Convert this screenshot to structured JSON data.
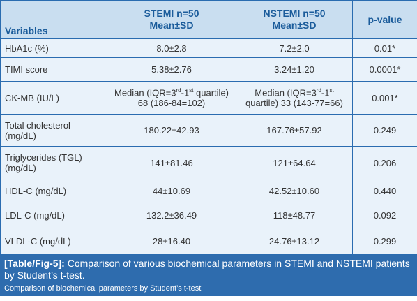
{
  "table": {
    "header": [
      "Variables",
      [
        "STEMI n=50",
        "Mean±SD"
      ],
      [
        "NSTEMI n=50",
        "Mean±SD"
      ],
      "p-value"
    ],
    "rows": [
      [
        "HbA1c (%)",
        "8.0±2.8",
        "7.2±2.0",
        "0.01*"
      ],
      [
        "TIMI score",
        "5.38±2.76",
        "3.24±1.20",
        "0.0001*"
      ],
      [
        "CK-MB (IU/L)",
        [
          "Median (IQR=3",
          "rd",
          "-1",
          "st",
          " quartile) 68 (186-84=102)"
        ],
        [
          "Median (IQR=3",
          "rd",
          "-1",
          "st",
          " quartile) 33 (143-77=66)"
        ],
        "0.001*"
      ],
      [
        "Total cholesterol (mg/dL)",
        "180.22±42.93",
        "167.76±57.92",
        "0.249"
      ],
      [
        "Triglycerides (TGL) (mg/dL)",
        "141±81.46",
        "121±64.64",
        "0.206"
      ],
      [
        "HDL-C (mg/dL)",
        "44±10.69",
        "42.52±10.60",
        "0.440"
      ],
      [
        "LDL-C (mg/dL)",
        "132.2±36.49",
        "118±48.77",
        "0.092"
      ],
      [
        "VLDL-C (mg/dL)",
        "28±16.40",
        "24.76±13.12",
        "0.299"
      ]
    ]
  },
  "caption": {
    "label": "[Table/Fig-5]:",
    "text": " Comparison of various biochemical parameters in STEMI and NSTEMI patients by Student’s t-test.",
    "note": "Comparison of biochemical parameters by Student’s t-test"
  }
}
